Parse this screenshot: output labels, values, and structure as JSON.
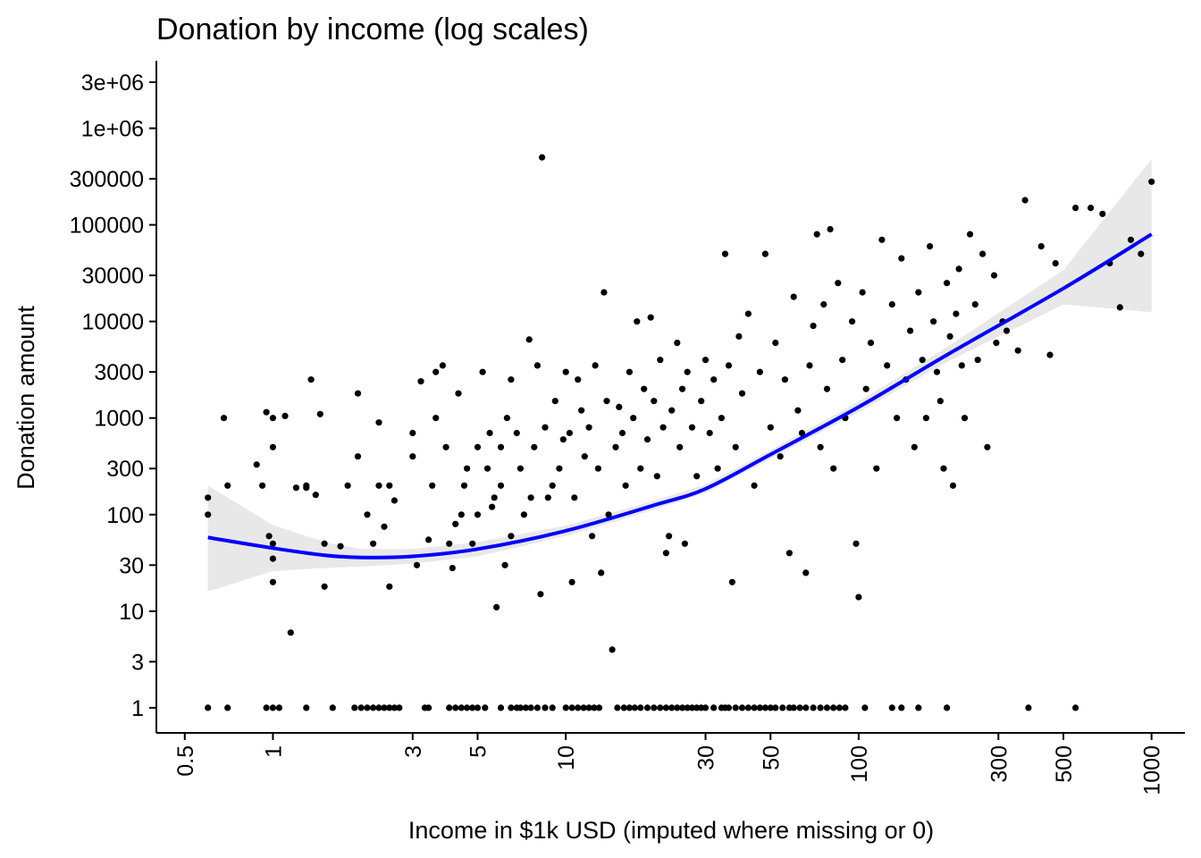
{
  "chart_data": {
    "type": "scatter",
    "title": "Donation by income (log scales)",
    "xlabel": "Income in $1k USD (imputed where missing or 0)",
    "ylabel": "Donation amount",
    "x_scale": "log",
    "y_scale": "log",
    "xlim": [
      0.4,
      1300
    ],
    "ylim": [
      0.55,
      5000000
    ],
    "x_ticks": [
      0.5,
      1,
      3,
      5,
      10,
      30,
      50,
      100,
      300,
      500,
      1000
    ],
    "x_tick_labels": [
      "0.5",
      "1",
      "3",
      "5",
      "10",
      "30",
      "50",
      "100",
      "300",
      "500",
      "1000"
    ],
    "y_ticks": [
      1,
      3,
      10,
      30,
      100,
      300,
      1000,
      3000,
      10000,
      30000,
      100000,
      300000,
      1000000,
      3000000
    ],
    "y_tick_labels": [
      "1",
      "3",
      "10",
      "30",
      "100",
      "300",
      "1000",
      "3000",
      "10000",
      "30000",
      "100000",
      "300000",
      "1e+06",
      "3e+06"
    ],
    "grid": false,
    "legend": "none",
    "colors": {
      "points": "#000000",
      "smooth_line": "#0000ff",
      "confidence_band": "#d9d9d9"
    },
    "series": [
      {
        "points": [
          [
            0.6,
            1
          ],
          [
            0.7,
            1
          ],
          [
            0.95,
            1
          ],
          [
            1.0,
            1
          ],
          [
            1.05,
            1
          ],
          [
            1.3,
            1
          ],
          [
            1.6,
            1
          ],
          [
            1.9,
            1
          ],
          [
            2.0,
            1
          ],
          [
            2.1,
            1
          ],
          [
            2.2,
            1
          ],
          [
            2.3,
            1
          ],
          [
            2.4,
            1
          ],
          [
            2.5,
            1
          ],
          [
            2.6,
            1
          ],
          [
            2.7,
            1
          ],
          [
            3.3,
            1
          ],
          [
            3.4,
            1
          ],
          [
            4.0,
            1
          ],
          [
            4.2,
            1
          ],
          [
            4.4,
            1
          ],
          [
            4.6,
            1
          ],
          [
            4.8,
            1
          ],
          [
            5.0,
            1
          ],
          [
            5.3,
            1
          ],
          [
            6.0,
            1
          ],
          [
            6.5,
            1
          ],
          [
            6.8,
            1
          ],
          [
            7.0,
            1
          ],
          [
            7.3,
            1
          ],
          [
            7.6,
            1
          ],
          [
            8.0,
            1
          ],
          [
            8.5,
            1
          ],
          [
            9.0,
            1
          ],
          [
            10.0,
            1
          ],
          [
            10.5,
            1
          ],
          [
            11.0,
            1
          ],
          [
            11.5,
            1
          ],
          [
            12.0,
            1
          ],
          [
            12.5,
            1
          ],
          [
            13.0,
            1
          ],
          [
            15.0,
            1
          ],
          [
            15.8,
            1
          ],
          [
            16.5,
            1
          ],
          [
            17.2,
            1
          ],
          [
            18.0,
            1
          ],
          [
            19.0,
            1
          ],
          [
            20.0,
            1
          ],
          [
            21.0,
            1
          ],
          [
            22.0,
            1
          ],
          [
            23.0,
            1
          ],
          [
            24.0,
            1
          ],
          [
            25.0,
            1
          ],
          [
            26.0,
            1
          ],
          [
            27.0,
            1
          ],
          [
            28.0,
            1
          ],
          [
            29.0,
            1
          ],
          [
            30.0,
            1
          ],
          [
            32.0,
            1
          ],
          [
            34.0,
            1
          ],
          [
            35.0,
            1
          ],
          [
            36.0,
            1
          ],
          [
            38.0,
            1
          ],
          [
            40.0,
            1
          ],
          [
            42.0,
            1
          ],
          [
            44.0,
            1
          ],
          [
            46.0,
            1
          ],
          [
            48.0,
            1
          ],
          [
            50.0,
            1
          ],
          [
            52.0,
            1
          ],
          [
            55.0,
            1
          ],
          [
            58.0,
            1
          ],
          [
            60.0,
            1
          ],
          [
            63.0,
            1
          ],
          [
            66.0,
            1
          ],
          [
            70.0,
            1
          ],
          [
            74.0,
            1
          ],
          [
            78.0,
            1
          ],
          [
            82.0,
            1
          ],
          [
            86.0,
            1
          ],
          [
            90.0,
            1
          ],
          [
            105.0,
            1
          ],
          [
            130.0,
            1
          ],
          [
            140.0,
            1
          ],
          [
            160.0,
            1
          ],
          [
            200.0,
            1
          ],
          [
            380.0,
            1
          ],
          [
            550.0,
            1
          ],
          [
            0.6,
            150
          ],
          [
            0.6,
            100
          ],
          [
            0.7,
            200
          ],
          [
            0.68,
            1000
          ],
          [
            0.88,
            330
          ],
          [
            0.92,
            200
          ],
          [
            0.95,
            1150
          ],
          [
            0.97,
            60
          ],
          [
            1.0,
            50
          ],
          [
            1.0,
            20
          ],
          [
            1.0,
            35
          ],
          [
            1.0,
            500
          ],
          [
            1.0,
            1000
          ],
          [
            1.1,
            1050
          ],
          [
            1.15,
            6
          ],
          [
            1.2,
            190
          ],
          [
            1.3,
            190
          ],
          [
            1.3,
            200
          ],
          [
            1.35,
            2500
          ],
          [
            1.4,
            160
          ],
          [
            1.45,
            1100
          ],
          [
            1.5,
            50
          ],
          [
            1.5,
            18
          ],
          [
            1.7,
            47
          ],
          [
            1.8,
            200
          ],
          [
            1.95,
            1800
          ],
          [
            1.95,
            400
          ],
          [
            2.1,
            100
          ],
          [
            2.2,
            50
          ],
          [
            2.3,
            900
          ],
          [
            2.3,
            200
          ],
          [
            2.4,
            75
          ],
          [
            2.5,
            200
          ],
          [
            2.5,
            18
          ],
          [
            2.6,
            140
          ],
          [
            3.0,
            700
          ],
          [
            3.0,
            400
          ],
          [
            3.1,
            30
          ],
          [
            3.2,
            2400
          ],
          [
            3.4,
            55
          ],
          [
            3.5,
            200
          ],
          [
            3.6,
            1000
          ],
          [
            3.6,
            3000
          ],
          [
            3.8,
            3500
          ],
          [
            3.9,
            500
          ],
          [
            4.0,
            50
          ],
          [
            4.1,
            28
          ],
          [
            4.2,
            80
          ],
          [
            4.3,
            1800
          ],
          [
            4.4,
            100
          ],
          [
            4.5,
            200
          ],
          [
            4.6,
            300
          ],
          [
            4.8,
            50
          ],
          [
            5.0,
            500
          ],
          [
            5.0,
            100
          ],
          [
            5.2,
            3000
          ],
          [
            5.4,
            300
          ],
          [
            5.5,
            700
          ],
          [
            5.6,
            120
          ],
          [
            5.7,
            150
          ],
          [
            5.8,
            11
          ],
          [
            6.0,
            200
          ],
          [
            6.0,
            500
          ],
          [
            6.2,
            30
          ],
          [
            6.3,
            1000
          ],
          [
            6.5,
            2500
          ],
          [
            6.5,
            60
          ],
          [
            6.8,
            700
          ],
          [
            7.0,
            300
          ],
          [
            7.2,
            100
          ],
          [
            7.5,
            6500
          ],
          [
            7.6,
            150
          ],
          [
            7.8,
            500
          ],
          [
            8.0,
            3500
          ],
          [
            8.2,
            15
          ],
          [
            8.3,
            500000
          ],
          [
            8.5,
            800
          ],
          [
            8.7,
            150
          ],
          [
            9.0,
            200
          ],
          [
            9.2,
            1500
          ],
          [
            9.5,
            300
          ],
          [
            9.8,
            600
          ],
          [
            10.0,
            3000
          ],
          [
            10.3,
            700
          ],
          [
            10.5,
            20
          ],
          [
            10.7,
            150
          ],
          [
            11.0,
            2500
          ],
          [
            11.3,
            1200
          ],
          [
            11.6,
            400
          ],
          [
            12.0,
            800
          ],
          [
            12.3,
            60
          ],
          [
            12.6,
            3500
          ],
          [
            12.9,
            300
          ],
          [
            13.2,
            25
          ],
          [
            13.5,
            20000
          ],
          [
            13.8,
            1500
          ],
          [
            14.0,
            100
          ],
          [
            14.4,
            4
          ],
          [
            14.8,
            500
          ],
          [
            15.2,
            1300
          ],
          [
            15.6,
            700
          ],
          [
            16.0,
            200
          ],
          [
            16.5,
            3000
          ],
          [
            17.0,
            1000
          ],
          [
            17.5,
            10000
          ],
          [
            18.0,
            300
          ],
          [
            18.5,
            2000
          ],
          [
            19.0,
            600
          ],
          [
            19.5,
            11000
          ],
          [
            20.0,
            1500
          ],
          [
            20.5,
            250
          ],
          [
            21.0,
            4000
          ],
          [
            21.5,
            800
          ],
          [
            22.0,
            40
          ],
          [
            22.5,
            60
          ],
          [
            23.0,
            1200
          ],
          [
            24.0,
            6000
          ],
          [
            24.5,
            500
          ],
          [
            25.0,
            2000
          ],
          [
            25.5,
            50
          ],
          [
            26.0,
            3000
          ],
          [
            27.0,
            800
          ],
          [
            28.0,
            250
          ],
          [
            29.0,
            1500
          ],
          [
            30.0,
            4000
          ],
          [
            31.0,
            700
          ],
          [
            32.0,
            2500
          ],
          [
            33.0,
            300
          ],
          [
            34.0,
            1000
          ],
          [
            35.0,
            50000
          ],
          [
            36.0,
            3500
          ],
          [
            37.0,
            20
          ],
          [
            38.0,
            500
          ],
          [
            39.0,
            7000
          ],
          [
            40.0,
            1800
          ],
          [
            42.0,
            12000
          ],
          [
            44.0,
            200
          ],
          [
            46.0,
            3000
          ],
          [
            48.0,
            50000
          ],
          [
            50.0,
            800
          ],
          [
            52.0,
            6000
          ],
          [
            54.0,
            400
          ],
          [
            56.0,
            2500
          ],
          [
            58.0,
            40
          ],
          [
            60.0,
            18000
          ],
          [
            62.0,
            1200
          ],
          [
            64.0,
            700
          ],
          [
            66.0,
            25
          ],
          [
            68.0,
            3500
          ],
          [
            70.0,
            9000
          ],
          [
            72.0,
            80000
          ],
          [
            74.0,
            500
          ],
          [
            76.0,
            15000
          ],
          [
            78.0,
            2000
          ],
          [
            80.0,
            90000
          ],
          [
            82.0,
            300
          ],
          [
            85.0,
            25000
          ],
          [
            88.0,
            4000
          ],
          [
            90.0,
            1000
          ],
          [
            95.0,
            10000
          ],
          [
            98.0,
            50
          ],
          [
            100.0,
            14
          ],
          [
            103.0,
            20000
          ],
          [
            106.0,
            2000
          ],
          [
            110.0,
            6000
          ],
          [
            115.0,
            300
          ],
          [
            120.0,
            70000
          ],
          [
            125.0,
            3500
          ],
          [
            130.0,
            15000
          ],
          [
            135.0,
            1000
          ],
          [
            140.0,
            45000
          ],
          [
            145.0,
            2500
          ],
          [
            150.0,
            8000
          ],
          [
            155.0,
            500
          ],
          [
            160.0,
            20000
          ],
          [
            165.0,
            4000
          ],
          [
            170.0,
            1000
          ],
          [
            175.0,
            60000
          ],
          [
            180.0,
            10000
          ],
          [
            185.0,
            3000
          ],
          [
            190.0,
            1500
          ],
          [
            195.0,
            300
          ],
          [
            200.0,
            25000
          ],
          [
            205.0,
            7000
          ],
          [
            210.0,
            200
          ],
          [
            215.0,
            12000
          ],
          [
            220.0,
            35000
          ],
          [
            225.0,
            3500
          ],
          [
            230.0,
            1000
          ],
          [
            240.0,
            80000
          ],
          [
            250.0,
            15000
          ],
          [
            255.0,
            4000
          ],
          [
            265.0,
            50000
          ],
          [
            275.0,
            500
          ],
          [
            290.0,
            30000
          ],
          [
            295.0,
            6000
          ],
          [
            310.0,
            10000
          ],
          [
            320.0,
            8000
          ],
          [
            350.0,
            5000
          ],
          [
            370.0,
            180000
          ],
          [
            420.0,
            60000
          ],
          [
            450.0,
            4500
          ],
          [
            470.0,
            40000
          ],
          [
            550.0,
            150000
          ],
          [
            620.0,
            150000
          ],
          [
            680.0,
            130000
          ],
          [
            720.0,
            40000
          ],
          [
            780.0,
            14000
          ],
          [
            850.0,
            70000
          ],
          [
            920.0,
            50000
          ],
          [
            1000.0,
            280000
          ]
        ]
      }
    ],
    "smooth": {
      "x": [
        0.6,
        1,
        1.5,
        2,
        3,
        5,
        10,
        20,
        30,
        50,
        100,
        200,
        500,
        1000
      ],
      "y": [
        58,
        45,
        38,
        36,
        37,
        44,
        68,
        125,
        185,
        420,
        1300,
        4500,
        22000,
        80000
      ],
      "lower": [
        16,
        26,
        28,
        29,
        31,
        37,
        60,
        112,
        168,
        380,
        1150,
        3800,
        15000,
        12500
      ],
      "upper": [
        200,
        78,
        52,
        44,
        44,
        52,
        77,
        139,
        205,
        465,
        1480,
        5400,
        34000,
        480000
      ]
    }
  }
}
